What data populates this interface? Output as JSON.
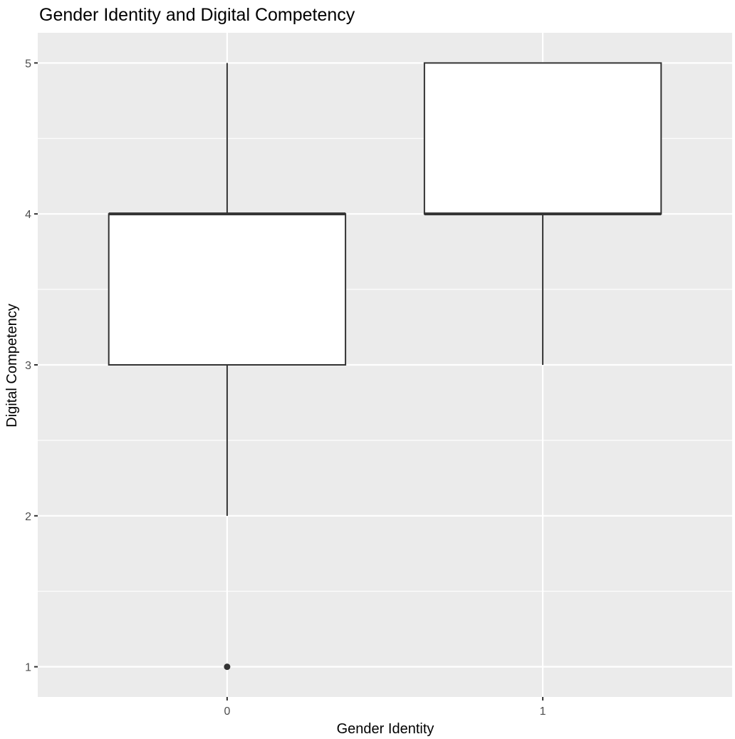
{
  "chart_data": {
    "type": "boxplot",
    "title": "Gender Identity and Digital Competency",
    "xlabel": "Gender Identity",
    "ylabel": "Digital Competency",
    "categories": [
      "0",
      "1"
    ],
    "yticks": [
      "1",
      "2",
      "3",
      "4",
      "5"
    ],
    "ylim": [
      0.8,
      5.2
    ],
    "grid": true,
    "legend": "none",
    "boxes": [
      {
        "category": "0",
        "whisker_low": 2,
        "q1": 3,
        "median": 4,
        "q3": 4,
        "whisker_high": 5,
        "outliers": [
          1
        ]
      },
      {
        "category": "1",
        "whisker_low": 3,
        "q1": 4,
        "median": 4,
        "q3": 5,
        "whisker_high": 5,
        "outliers": []
      }
    ],
    "colors": {
      "panel_background": "#ebebeb",
      "grid_line": "#ffffff",
      "box_fill": "#ffffff",
      "box_stroke": "#333333",
      "tick_mark": "#333333",
      "tick_text": "#4d4d4d"
    }
  }
}
